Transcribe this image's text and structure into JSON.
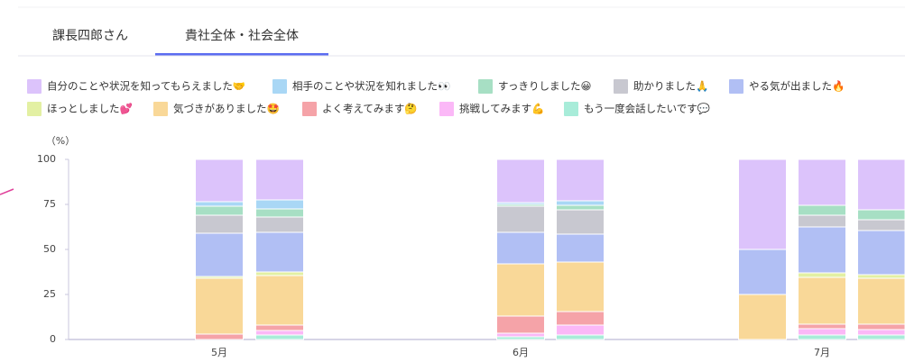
{
  "tabs": {
    "items": [
      "課長四郎さん",
      "貴社全体・社会全体"
    ],
    "active": 1
  },
  "chart_data": {
    "type": "bar",
    "stacked": true,
    "y_unit": "（%）",
    "categories": [
      "5月",
      null,
      "6月",
      null,
      null,
      "7月",
      null
    ],
    "ylim": [
      0,
      100
    ],
    "yticks": [
      0,
      25,
      50,
      75,
      100
    ],
    "series": [
      {
        "name": "自分のことや状況を知ってもらえました🤝",
        "color": "#dcc3fb",
        "values": [
          23.5,
          22.5,
          24,
          23,
          50,
          25.5,
          28
        ]
      },
      {
        "name": "相手のことや状況を知れました👀",
        "color": "#a9d7f5",
        "values": [
          2.5,
          5,
          1,
          2.5,
          0,
          0,
          0
        ]
      },
      {
        "name": "すっきりしました😀",
        "color": "#a7dfc4",
        "values": [
          5,
          4.5,
          1,
          2.5,
          0,
          5.5,
          5.5
        ]
      },
      {
        "name": "助かりました🙏",
        "color": "#c8c8d0",
        "values": [
          10,
          8.5,
          14.5,
          13.5,
          0,
          6.5,
          6
        ]
      },
      {
        "name": "やる気が出ました🔥",
        "color": "#b1bff4",
        "values": [
          24,
          22,
          17.5,
          15.5,
          25,
          25.5,
          24.5
        ]
      },
      {
        "name": "ほっとしました💕",
        "color": "#e3f0a3",
        "values": [
          1,
          2,
          0,
          0,
          0,
          2.5,
          2
        ]
      },
      {
        "name": "気づきがありました🤩",
        "color": "#f9d898",
        "values": [
          31,
          27.5,
          29,
          27.5,
          25,
          26,
          25.5
        ]
      },
      {
        "name": "よく考えてみます🤔",
        "color": "#f5a3a8",
        "values": [
          3,
          3,
          9.5,
          7.5,
          0,
          2.5,
          3
        ]
      },
      {
        "name": "挑戦してみます💪",
        "color": "#fbb8f7",
        "values": [
          0,
          2.5,
          2,
          5.5,
          0,
          3.5,
          3
        ]
      },
      {
        "name": "もう一度会話したいです💬",
        "color": "#a8ecd9",
        "values": [
          0,
          2.5,
          1.5,
          2.5,
          0,
          2.5,
          2.5
        ]
      }
    ]
  }
}
